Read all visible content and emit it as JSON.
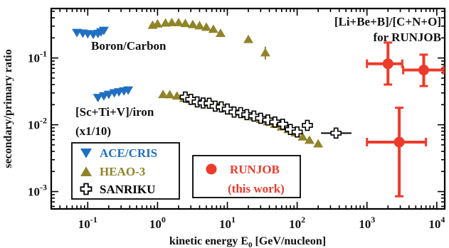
{
  "colors": {
    "ace": "#1f6fc2",
    "heao": "#8f8428",
    "sanriku": "#000000",
    "runjob": "#ee3a2a",
    "frame": "#000000"
  },
  "chart_data": {
    "type": "scatter",
    "xlabel_main": "kinetic energy E",
    "xlabel_sub": "0",
    "xlabel_units": " [GeV/nucleon]",
    "ylabel": "secondary/primary ratio",
    "xscale": "log",
    "yscale": "log",
    "xlim": [
      0.03,
      13000
    ],
    "ylim": [
      0.00055,
      0.55
    ],
    "grid": false,
    "x_ticks": [
      {
        "value": 0.1,
        "base": "10",
        "exp": "-1"
      },
      {
        "value": 1,
        "base": "10",
        "exp": "0"
      },
      {
        "value": 10,
        "base": "10",
        "exp": "1"
      },
      {
        "value": 100,
        "base": "10",
        "exp": "2"
      },
      {
        "value": 1000,
        "base": "10",
        "exp": "3"
      },
      {
        "value": 10000,
        "base": "10",
        "exp": "4"
      }
    ],
    "y_ticks": [
      {
        "value": 0.1,
        "base": "10",
        "exp": "-1"
      },
      {
        "value": 0.01,
        "base": "10",
        "exp": "-2"
      },
      {
        "value": 0.001,
        "base": "10",
        "exp": "-3"
      }
    ],
    "annotations": {
      "boron_carbon": "Boron/Carbon",
      "sc_iron_line1": "[Sc+Ti+V]/iron",
      "sc_iron_line2": "(x1/10)",
      "li_line1": "[Li+Be+B]/[C+N+O]",
      "li_line2": "for RUNJOB"
    },
    "legend_left": [
      "ACE/CRIS",
      "HEAO-3",
      "SANRIKU"
    ],
    "legend_right_line1": "RUNJOB",
    "legend_right_line2": "(this work)",
    "series": [
      {
        "name": "ACE/CRIS",
        "marker": "triangle-down",
        "points": [
          {
            "x": 0.07,
            "y": 0.24
          },
          {
            "x": 0.085,
            "y": 0.235
          },
          {
            "x": 0.1,
            "y": 0.23
          },
          {
            "x": 0.12,
            "y": 0.225
          },
          {
            "x": 0.14,
            "y": 0.232
          },
          {
            "x": 0.155,
            "y": 0.245
          },
          {
            "x": 0.17,
            "y": 0.258
          },
          {
            "x": 0.14,
            "y": 0.0255
          },
          {
            "x": 0.17,
            "y": 0.027
          },
          {
            "x": 0.2,
            "y": 0.0285
          },
          {
            "x": 0.24,
            "y": 0.03
          },
          {
            "x": 0.28,
            "y": 0.031
          },
          {
            "x": 0.33,
            "y": 0.032
          },
          {
            "x": 0.38,
            "y": 0.033
          }
        ]
      },
      {
        "name": "HEAO-3",
        "marker": "triangle-up",
        "points": [
          {
            "x": 0.85,
            "y": 0.31
          },
          {
            "x": 1.0,
            "y": 0.325
          },
          {
            "x": 1.3,
            "y": 0.335
          },
          {
            "x": 1.6,
            "y": 0.34
          },
          {
            "x": 2.0,
            "y": 0.34
          },
          {
            "x": 2.5,
            "y": 0.33
          },
          {
            "x": 3.2,
            "y": 0.318
          },
          {
            "x": 4.0,
            "y": 0.305
          },
          {
            "x": 5.0,
            "y": 0.29
          },
          {
            "x": 6.3,
            "y": 0.27
          },
          {
            "x": 8.0,
            "y": 0.235
          },
          {
            "x": 20.0,
            "y": 0.19
          },
          {
            "x": 35.0,
            "y": 0.12,
            "yerr_lo": 0.095,
            "yerr_hi": 0.148
          },
          {
            "x": 1.2,
            "y": 0.0285
          },
          {
            "x": 1.5,
            "y": 0.0283
          },
          {
            "x": 1.9,
            "y": 0.027
          },
          {
            "x": 2.4,
            "y": 0.025
          },
          {
            "x": 3.0,
            "y": 0.024
          },
          {
            "x": 3.8,
            "y": 0.0225
          },
          {
            "x": 4.8,
            "y": 0.0212
          },
          {
            "x": 6.0,
            "y": 0.02
          },
          {
            "x": 7.5,
            "y": 0.0188
          },
          {
            "x": 9.5,
            "y": 0.0178
          },
          {
            "x": 12.0,
            "y": 0.0165
          },
          {
            "x": 15.0,
            "y": 0.0155
          },
          {
            "x": 19.0,
            "y": 0.0143
          },
          {
            "x": 24.0,
            "y": 0.0132
          },
          {
            "x": 30.0,
            "y": 0.0121
          },
          {
            "x": 38.0,
            "y": 0.0112
          },
          {
            "x": 48.0,
            "y": 0.0102
          },
          {
            "x": 60.0,
            "y": 0.0093
          },
          {
            "x": 75.0,
            "y": 0.0085
          },
          {
            "x": 95.0,
            "y": 0.0076
          },
          {
            "x": 120.0,
            "y": 0.0066
          },
          {
            "x": 150.0,
            "y": 0.0059
          },
          {
            "x": 200.0,
            "y": 0.0052
          }
        ]
      },
      {
        "name": "SANRIKU",
        "marker": "cross",
        "points": [
          {
            "x": 2.5,
            "y": 0.026
          },
          {
            "x": 3.0,
            "y": 0.024
          },
          {
            "x": 3.7,
            "y": 0.022
          },
          {
            "x": 4.5,
            "y": 0.0212
          },
          {
            "x": 5.5,
            "y": 0.021
          },
          {
            "x": 6.7,
            "y": 0.019
          },
          {
            "x": 8.2,
            "y": 0.0185
          },
          {
            "x": 10.0,
            "y": 0.0172
          },
          {
            "x": 12.5,
            "y": 0.0155
          },
          {
            "x": 15.5,
            "y": 0.0152
          },
          {
            "x": 19.0,
            "y": 0.0142
          },
          {
            "x": 24.0,
            "y": 0.0135
          },
          {
            "x": 30.0,
            "y": 0.0125
          },
          {
            "x": 38.0,
            "y": 0.0118
          },
          {
            "x": 48.0,
            "y": 0.011
          },
          {
            "x": 62.0,
            "y": 0.0102
          },
          {
            "x": 80.0,
            "y": 0.0085
          },
          {
            "x": 100.0,
            "y": 0.0078
          },
          {
            "x": 140.0,
            "y": 0.0098
          },
          {
            "x": 360.0,
            "y": 0.0075,
            "x_lo": 220.0,
            "x_hi": 600.0
          }
        ]
      },
      {
        "name": "RUNJOB",
        "marker": "circle",
        "points": [
          {
            "x": 2000.0,
            "y": 0.082,
            "x_lo": 1000.0,
            "x_hi": 3200.0,
            "y_lo": 0.04,
            "y_hi": 0.17
          },
          {
            "x": 6500.0,
            "y": 0.066,
            "x_lo": 3300.0,
            "x_hi": 12500.0,
            "y_lo": 0.038,
            "y_hi": 0.112
          },
          {
            "x": 2900.0,
            "y": 0.0055,
            "x_lo": 1000.0,
            "x_hi": 7000.0,
            "y_lo": 0.00085,
            "y_hi": 0.018
          }
        ]
      }
    ]
  }
}
